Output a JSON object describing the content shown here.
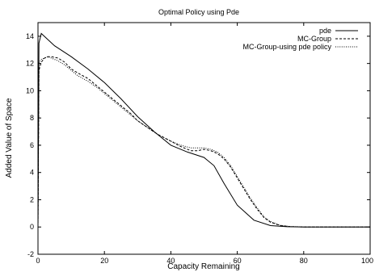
{
  "chart_data": {
    "type": "line",
    "title": "Optimal Policy using Pde",
    "xlabel": "Capacity Remaining",
    "ylabel": "Added Value of Space",
    "xlim": [
      0,
      100
    ],
    "ylim": [
      -2,
      15
    ],
    "xticks": [
      0,
      20,
      40,
      60,
      80,
      100
    ],
    "yticks": [
      -2,
      0,
      2,
      4,
      6,
      8,
      10,
      12,
      14
    ],
    "grid": false,
    "legend_position": "top-right",
    "series": [
      {
        "name": "pde",
        "style": "solid",
        "x": [
          0,
          0.3,
          1,
          5,
          10,
          15,
          20,
          25,
          30,
          35,
          40,
          45,
          50,
          53,
          56,
          60,
          65,
          70,
          75,
          80,
          90,
          100
        ],
        "y": [
          0,
          13.5,
          14.2,
          13.3,
          12.5,
          11.6,
          10.6,
          9.4,
          8.1,
          7.0,
          6.0,
          5.5,
          5.1,
          4.5,
          3.2,
          1.6,
          0.5,
          0.1,
          0.02,
          0,
          0,
          0
        ]
      },
      {
        "name": "MC-Group",
        "style": "dashed",
        "x": [
          0,
          0.3,
          1,
          2,
          3,
          4,
          6,
          8,
          10,
          12,
          15,
          18,
          20,
          22,
          25,
          28,
          30,
          33,
          36,
          40,
          43,
          46,
          48,
          50,
          52,
          54,
          56,
          58,
          60,
          62,
          64,
          66,
          68,
          70,
          73,
          76,
          80,
          90,
          100
        ],
        "y": [
          0,
          11.5,
          12.1,
          12.4,
          12.5,
          12.5,
          12.4,
          12.1,
          11.6,
          11.3,
          10.9,
          10.3,
          9.9,
          9.5,
          8.9,
          8.3,
          7.8,
          7.3,
          6.8,
          6.3,
          5.9,
          5.6,
          5.6,
          5.7,
          5.6,
          5.4,
          5.0,
          4.4,
          3.6,
          2.8,
          2.0,
          1.3,
          0.7,
          0.35,
          0.1,
          0.03,
          0,
          0,
          0
        ]
      },
      {
        "name": "MC-Group-using pde policy",
        "style": "dotted",
        "x": [
          0,
          0.3,
          1,
          2,
          3,
          4,
          6,
          8,
          10,
          12,
          15,
          18,
          20,
          22,
          25,
          28,
          30,
          33,
          36,
          40,
          43,
          46,
          48,
          50,
          52,
          54,
          56,
          58,
          60,
          62,
          64,
          66,
          68,
          70,
          73,
          76,
          80,
          90,
          100
        ],
        "y": [
          0,
          12.0,
          12.3,
          12.4,
          12.5,
          12.4,
          12.2,
          11.9,
          11.5,
          11.1,
          10.7,
          10.2,
          9.8,
          9.4,
          8.8,
          8.2,
          7.8,
          7.3,
          6.8,
          6.3,
          6.0,
          5.8,
          5.8,
          5.8,
          5.7,
          5.5,
          5.1,
          4.5,
          3.7,
          2.9,
          2.1,
          1.4,
          0.75,
          0.4,
          0.12,
          0.03,
          0,
          0,
          0
        ]
      }
    ]
  }
}
